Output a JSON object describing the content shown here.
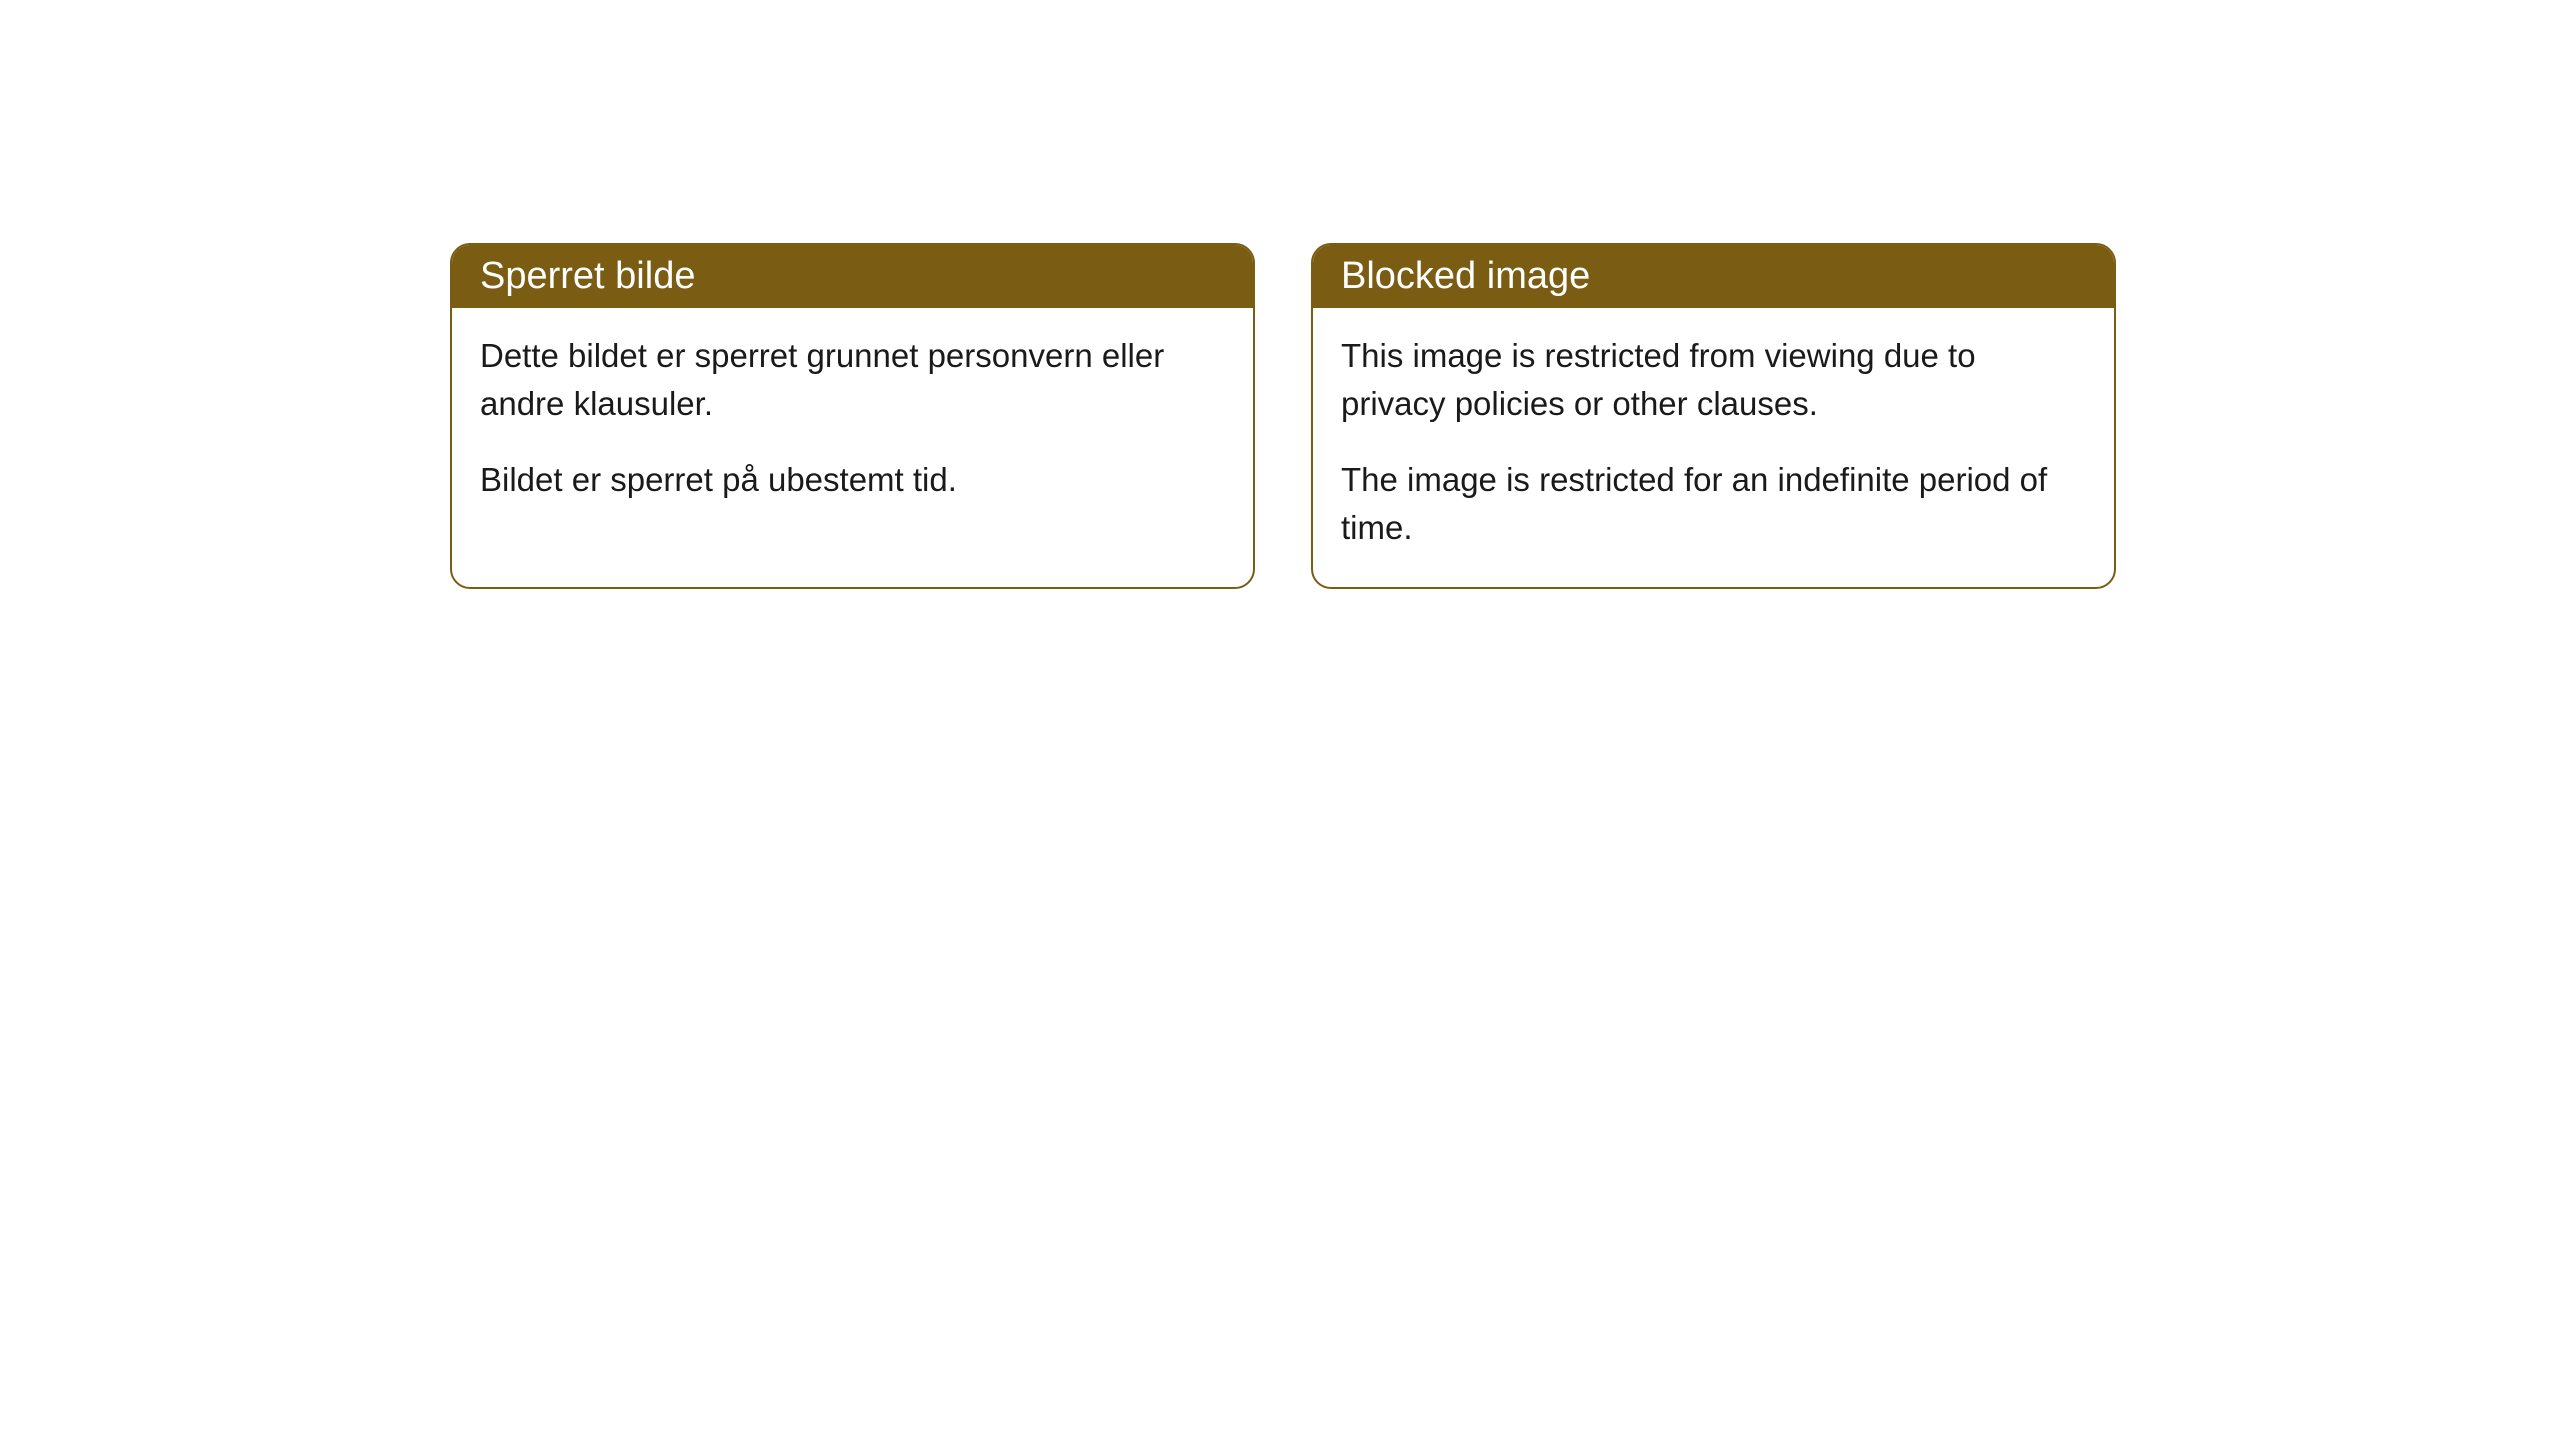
{
  "cards": [
    {
      "title": "Sperret bilde",
      "paragraph1": "Dette bildet er sperret grunnet personvern eller andre klausuler.",
      "paragraph2": "Bildet er sperret på ubestemt tid."
    },
    {
      "title": "Blocked image",
      "paragraph1": "This image is restricted from viewing due to privacy policies or other clauses.",
      "paragraph2": "The image is restricted for an indefinite period of time."
    }
  ],
  "styling": {
    "header_background": "#7a5c13",
    "header_text_color": "#ffffff",
    "border_color": "#7a5c13",
    "body_background": "#ffffff",
    "body_text_color": "#1a1a1a",
    "border_radius": 20,
    "title_fontsize": 38,
    "body_fontsize": 33
  }
}
